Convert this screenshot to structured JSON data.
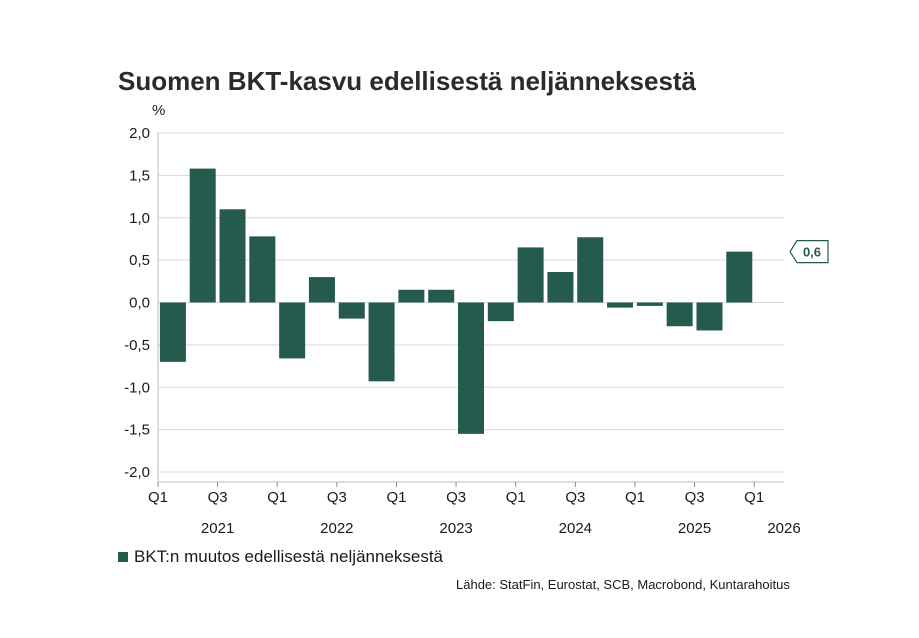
{
  "chart_data": {
    "type": "bar",
    "title": "Suomen BKT-kasvu edellisestä neljänneksestä",
    "ylabel": "%",
    "ylim": [
      -2.0,
      2.0
    ],
    "yticks": [
      "2,0",
      "1,5",
      "1,0",
      "0,5",
      "0,0",
      "-0,5",
      "-1,0",
      "-1,5",
      "-2,0"
    ],
    "ytick_values": [
      2.0,
      1.5,
      1.0,
      0.5,
      0.0,
      -0.5,
      -1.0,
      -1.5,
      -2.0
    ],
    "categories": [
      "2021 Q1",
      "2021 Q2",
      "2021 Q3",
      "2021 Q4",
      "2022 Q1",
      "2022 Q2",
      "2022 Q3",
      "2022 Q4",
      "2023 Q1",
      "2023 Q2",
      "2023 Q3",
      "2023 Q4",
      "2024 Q1",
      "2024 Q2",
      "2024 Q3",
      "2024 Q4",
      "2025 Q1",
      "2025 Q2",
      "2025 Q3",
      "2025 Q4"
    ],
    "values": [
      -0.7,
      1.58,
      1.1,
      0.78,
      -0.66,
      0.3,
      -0.19,
      -0.93,
      0.15,
      0.15,
      -1.55,
      -0.22,
      0.65,
      0.36,
      0.77,
      -0.06,
      -0.04,
      -0.28,
      -0.33,
      0.6
    ],
    "x_tick_labels": [
      {
        "index": 0,
        "label": "Q1"
      },
      {
        "index": 2,
        "label": "Q3"
      },
      {
        "index": 4,
        "label": "Q1"
      },
      {
        "index": 6,
        "label": "Q3"
      },
      {
        "index": 8,
        "label": "Q1"
      },
      {
        "index": 10,
        "label": "Q3"
      },
      {
        "index": 12,
        "label": "Q1"
      },
      {
        "index": 14,
        "label": "Q3"
      },
      {
        "index": 16,
        "label": "Q1"
      },
      {
        "index": 18,
        "label": "Q3"
      },
      {
        "index": 20,
        "label": "Q1"
      }
    ],
    "year_labels": [
      {
        "index": 2,
        "label": "2021"
      },
      {
        "index": 6,
        "label": "2022"
      },
      {
        "index": 10,
        "label": "2023"
      },
      {
        "index": 14,
        "label": "2024"
      },
      {
        "index": 18,
        "label": "2025"
      },
      {
        "index": 21,
        "label": "2026"
      }
    ],
    "series": [
      {
        "name": "BKT:n muutos edellisestä neljänneksestä",
        "color": "#255a4e"
      }
    ],
    "last_value_label": "0,6",
    "grid": true,
    "legend_placement": "bottom-left"
  },
  "source": "Lähde: StatFin, Eurostat, SCB, Macrobond, Kuntarahoitus",
  "colors": {
    "bar": "#255a4e",
    "grid": "#d9d9d9",
    "callout_text": "#255a4e"
  }
}
